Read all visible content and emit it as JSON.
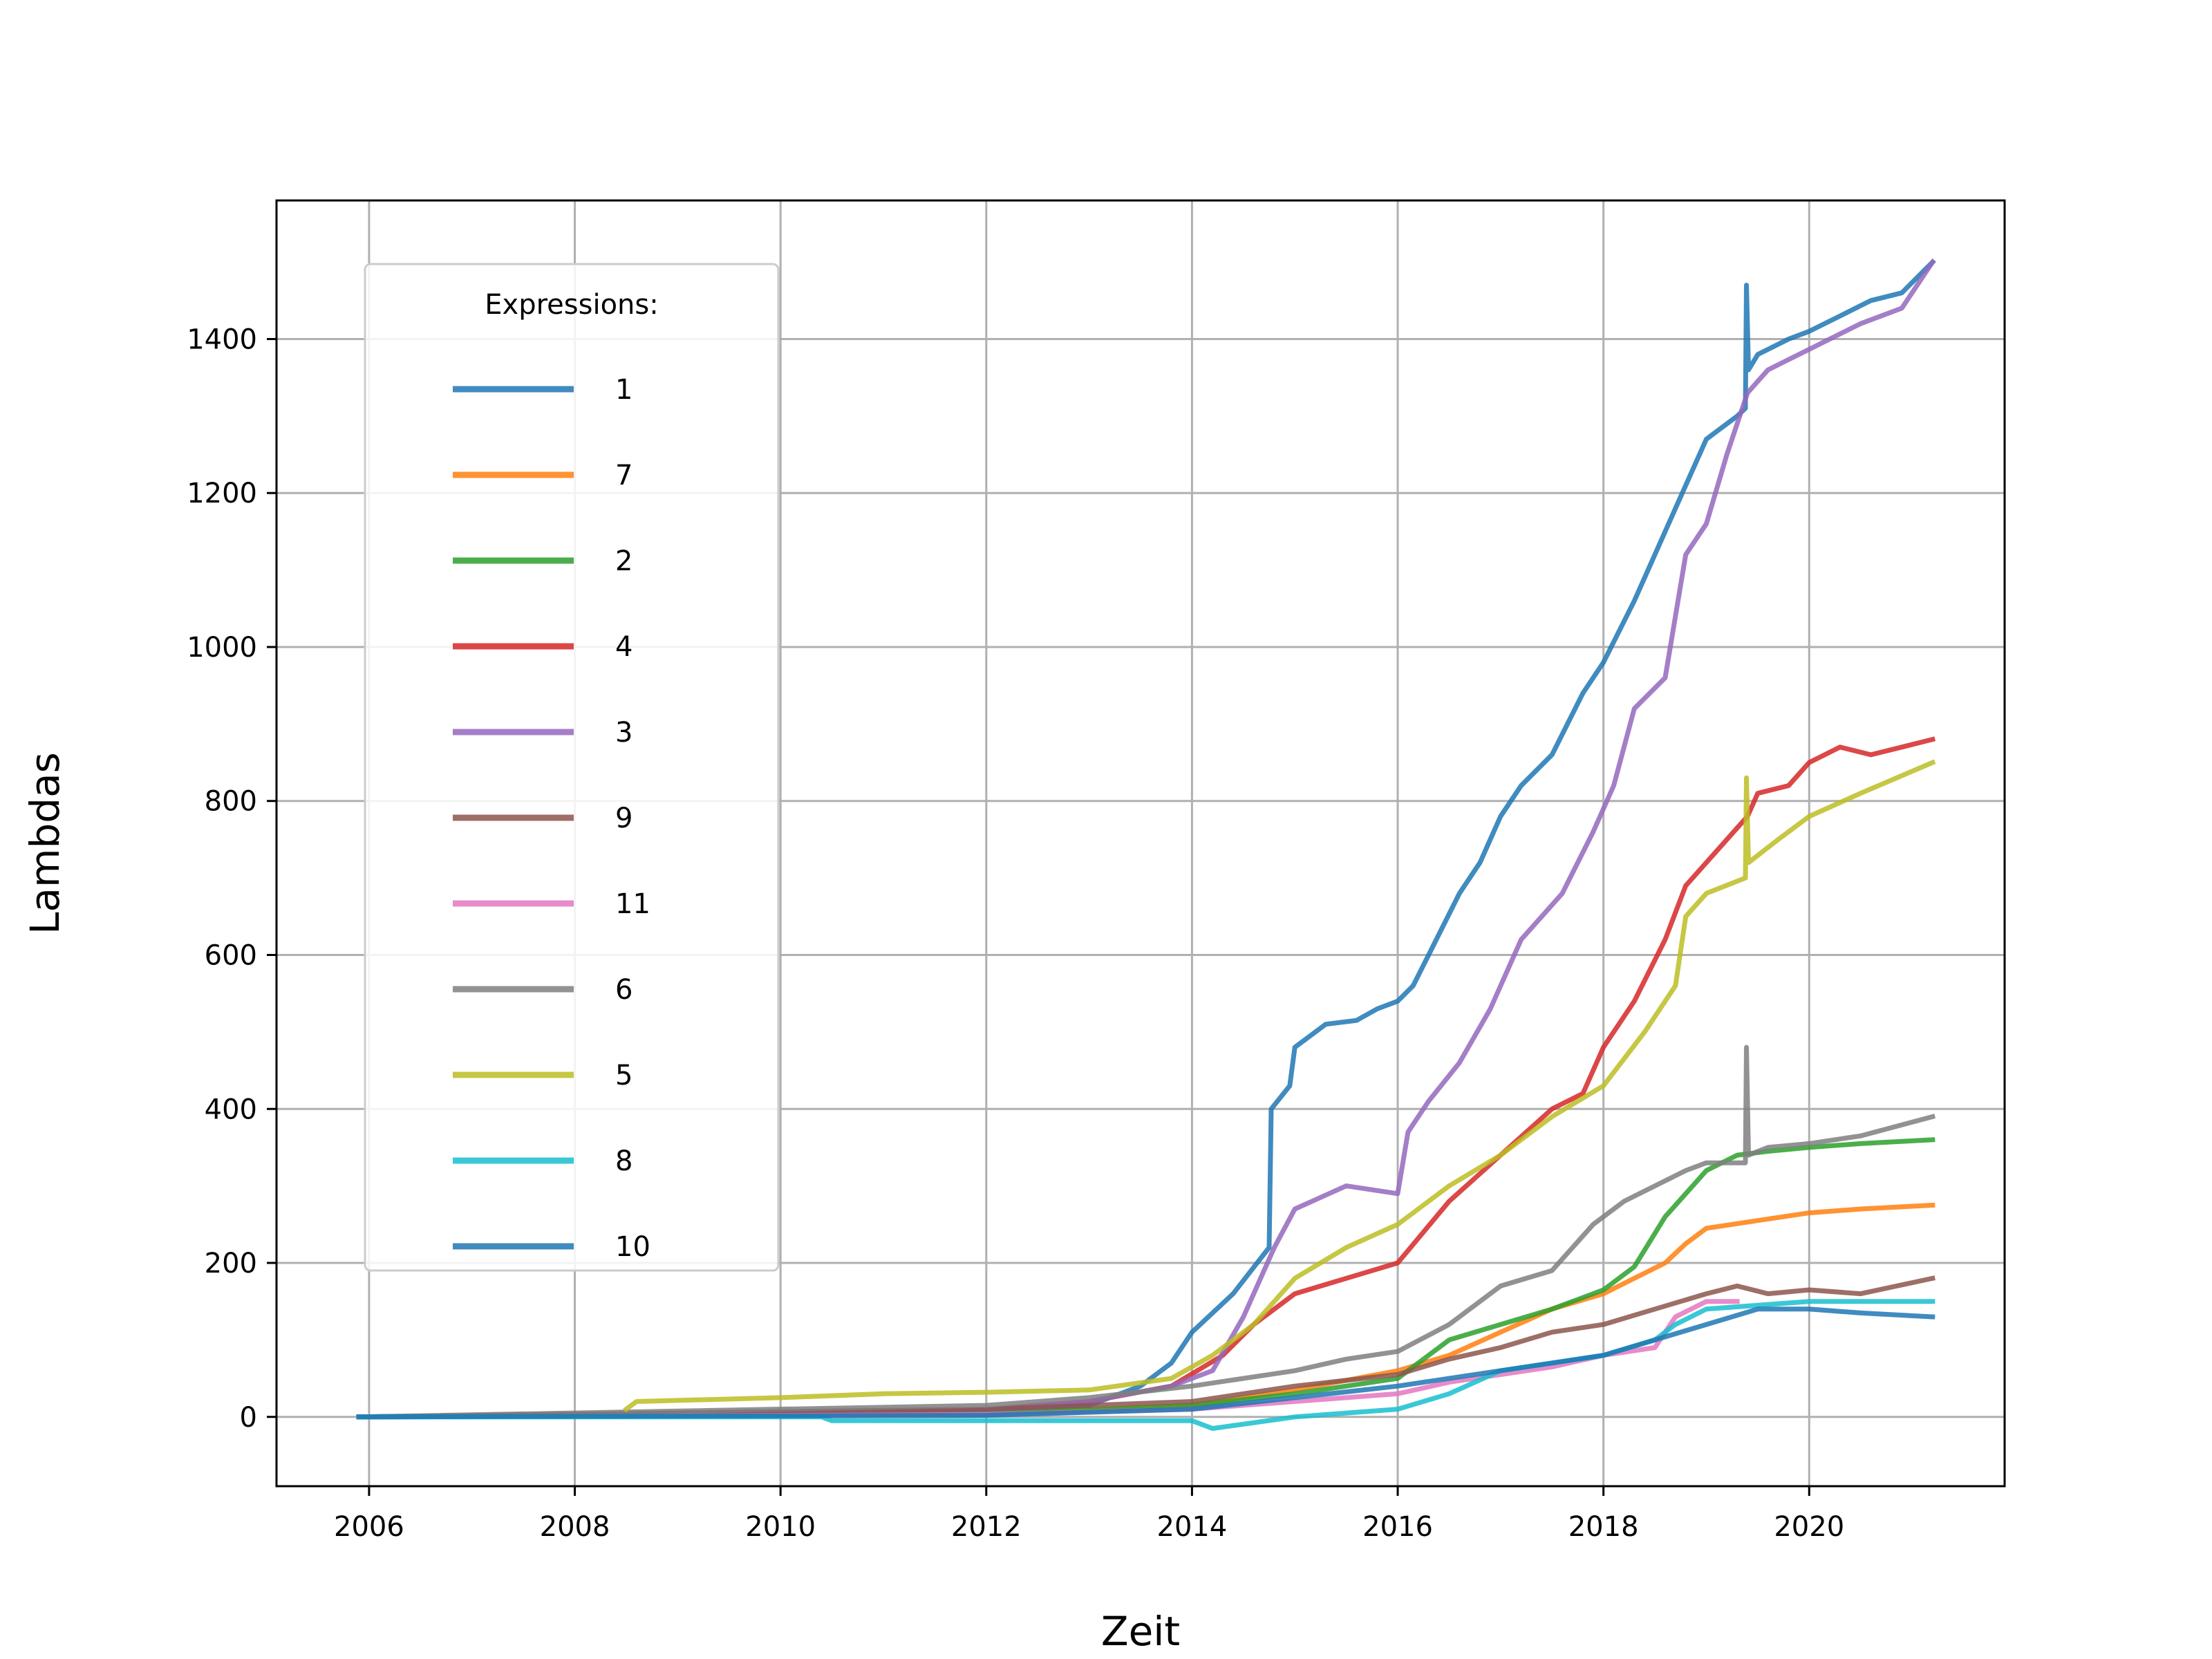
{
  "chart_data": {
    "type": "line",
    "xlabel": "Zeit",
    "ylabel": "Lambdas",
    "xlim": [
      2005.1,
      2021.9
    ],
    "ylim": [
      -90,
      1580
    ],
    "xticks": [
      2006,
      2008,
      2010,
      2012,
      2014,
      2016,
      2018,
      2020
    ],
    "yticks": [
      0,
      200,
      400,
      600,
      800,
      1000,
      1200,
      1400
    ],
    "grid": true,
    "legend": {
      "title": "Expressions:",
      "placement": "upper-left"
    },
    "series": [
      {
        "name": "1",
        "color": "#1f77b4",
        "x": [
          2005.9,
          2012.0,
          2013.0,
          2013.5,
          2013.8,
          2014.0,
          2014.4,
          2014.75,
          2014.77,
          2014.95,
          2015.0,
          2015.3,
          2015.6,
          2015.8,
          2016.0,
          2016.15,
          2016.3,
          2016.6,
          2016.8,
          2017.0,
          2017.2,
          2017.5,
          2017.8,
          2018.0,
          2018.3,
          2018.6,
          2018.8,
          2019.0,
          2019.3,
          2019.38,
          2019.39,
          2019.41,
          2019.5,
          2019.8,
          2020.0,
          2020.3,
          2020.6,
          2020.9,
          2021.2
        ],
        "y": [
          0,
          5,
          15,
          40,
          70,
          110,
          160,
          220,
          400,
          430,
          480,
          510,
          515,
          530,
          540,
          560,
          600,
          680,
          720,
          780,
          820,
          860,
          940,
          980,
          1060,
          1150,
          1210,
          1270,
          1300,
          1310,
          1470,
          1360,
          1380,
          1400,
          1410,
          1430,
          1450,
          1460,
          1500
        ]
      },
      {
        "name": "7",
        "color": "#ff7f0e",
        "x": [
          2005.9,
          2012.0,
          2014.0,
          2015.0,
          2016.0,
          2016.5,
          2017.0,
          2017.5,
          2018.0,
          2018.3,
          2018.6,
          2018.8,
          2019.0,
          2019.5,
          2020.0,
          2020.5,
          2021.2
        ],
        "y": [
          0,
          3,
          15,
          35,
          60,
          80,
          110,
          140,
          160,
          180,
          200,
          225,
          245,
          255,
          265,
          270,
          275
        ]
      },
      {
        "name": "2",
        "color": "#2ca02c",
        "x": [
          2005.9,
          2012.0,
          2014.0,
          2015.0,
          2016.0,
          2016.5,
          2017.0,
          2017.5,
          2018.0,
          2018.3,
          2018.6,
          2019.0,
          2019.3,
          2019.6,
          2020.0,
          2020.5,
          2021.2
        ],
        "y": [
          0,
          3,
          15,
          30,
          50,
          100,
          120,
          140,
          165,
          195,
          260,
          320,
          340,
          345,
          350,
          355,
          360
        ]
      },
      {
        "name": "4",
        "color": "#d62728",
        "x": [
          2005.9,
          2012.0,
          2013.0,
          2013.8,
          2014.3,
          2014.6,
          2015.0,
          2015.5,
          2016.0,
          2016.5,
          2017.0,
          2017.5,
          2017.8,
          2018.0,
          2018.3,
          2018.6,
          2018.8,
          2019.0,
          2019.4,
          2019.5,
          2019.8,
          2020.0,
          2020.3,
          2020.6,
          2020.9,
          2021.2
        ],
        "y": [
          0,
          10,
          20,
          40,
          80,
          120,
          160,
          180,
          200,
          280,
          340,
          400,
          420,
          480,
          540,
          620,
          690,
          720,
          780,
          810,
          820,
          850,
          870,
          860,
          870,
          880
        ]
      },
      {
        "name": "3",
        "color": "#9467bd",
        "x": [
          2005.9,
          2012.0,
          2013.0,
          2013.8,
          2014.2,
          2014.5,
          2014.8,
          2015.0,
          2015.5,
          2016.0,
          2016.1,
          2016.3,
          2016.6,
          2016.9,
          2017.2,
          2017.6,
          2017.9,
          2018.1,
          2018.3,
          2018.6,
          2018.8,
          2019.0,
          2019.2,
          2019.4,
          2019.6,
          2019.9,
          2020.2,
          2020.5,
          2020.9,
          2021.2
        ],
        "y": [
          0,
          10,
          20,
          40,
          60,
          130,
          220,
          270,
          300,
          290,
          370,
          410,
          460,
          530,
          620,
          680,
          760,
          820,
          920,
          960,
          1120,
          1160,
          1250,
          1330,
          1360,
          1380,
          1400,
          1420,
          1440,
          1500
        ]
      },
      {
        "name": "9",
        "color": "#8c564b",
        "x": [
          2005.9,
          2012.0,
          2014.0,
          2015.0,
          2016.0,
          2016.5,
          2017.0,
          2017.5,
          2018.0,
          2018.5,
          2019.0,
          2019.3,
          2019.6,
          2020.0,
          2020.5,
          2021.2
        ],
        "y": [
          0,
          10,
          20,
          40,
          55,
          75,
          90,
          110,
          120,
          140,
          160,
          170,
          160,
          165,
          160,
          180
        ]
      },
      {
        "name": "11",
        "color": "#e377c2",
        "x": [
          2005.9,
          2012.0,
          2014.0,
          2015.0,
          2016.0,
          2016.5,
          2017.0,
          2017.5,
          2018.0,
          2018.5,
          2018.7,
          2019.0,
          2019.3
        ],
        "y": [
          0,
          3,
          10,
          20,
          30,
          45,
          55,
          65,
          80,
          90,
          130,
          150,
          150
        ]
      },
      {
        "name": "6",
        "color": "#7f7f7f",
        "x": [
          2005.9,
          2012.0,
          2013.0,
          2014.0,
          2015.0,
          2015.5,
          2016.0,
          2016.5,
          2017.0,
          2017.5,
          2017.9,
          2018.2,
          2018.5,
          2018.8,
          2019.0,
          2019.38,
          2019.39,
          2019.41,
          2019.6,
          2020.0,
          2020.5,
          2021.2
        ],
        "y": [
          0,
          15,
          25,
          40,
          60,
          75,
          85,
          120,
          170,
          190,
          250,
          280,
          300,
          320,
          330,
          330,
          480,
          340,
          350,
          355,
          365,
          390
        ]
      },
      {
        "name": "5",
        "color": "#bcbd22",
        "x": [
          2008.5,
          2008.6,
          2010.0,
          2011.0,
          2012.0,
          2013.0,
          2013.8,
          2014.2,
          2014.6,
          2015.0,
          2015.5,
          2016.0,
          2016.5,
          2017.0,
          2017.5,
          2018.0,
          2018.4,
          2018.7,
          2018.8,
          2019.0,
          2019.38,
          2019.39,
          2019.41,
          2019.7,
          2020.0,
          2020.5,
          2021.2
        ],
        "y": [
          10,
          20,
          25,
          30,
          32,
          35,
          50,
          80,
          120,
          180,
          220,
          250,
          300,
          340,
          390,
          430,
          500,
          560,
          650,
          680,
          700,
          830,
          720,
          750,
          780,
          810,
          850
        ]
      },
      {
        "name": "8",
        "color": "#17becf",
        "x": [
          2005.9,
          2010.4,
          2010.5,
          2012.0,
          2013.0,
          2014.0,
          2014.2,
          2015.0,
          2016.0,
          2016.5,
          2017.0,
          2017.5,
          2018.0,
          2018.5,
          2018.7,
          2019.0,
          2019.5,
          2020.0,
          2020.5,
          2021.2
        ],
        "y": [
          0,
          0,
          -5,
          -5,
          -5,
          -5,
          -15,
          0,
          10,
          30,
          60,
          70,
          80,
          100,
          120,
          140,
          145,
          150,
          150,
          150
        ]
      },
      {
        "name": "10",
        "color": "#1f77b4",
        "x": [
          2005.9,
          2012.0,
          2014.0,
          2015.0,
          2016.0,
          2016.5,
          2017.0,
          2017.5,
          2018.0,
          2018.5,
          2019.0,
          2019.5,
          2020.0,
          2020.5,
          2021.2
        ],
        "y": [
          0,
          2,
          10,
          25,
          40,
          50,
          60,
          70,
          80,
          100,
          120,
          140,
          140,
          135,
          130
        ]
      }
    ]
  }
}
